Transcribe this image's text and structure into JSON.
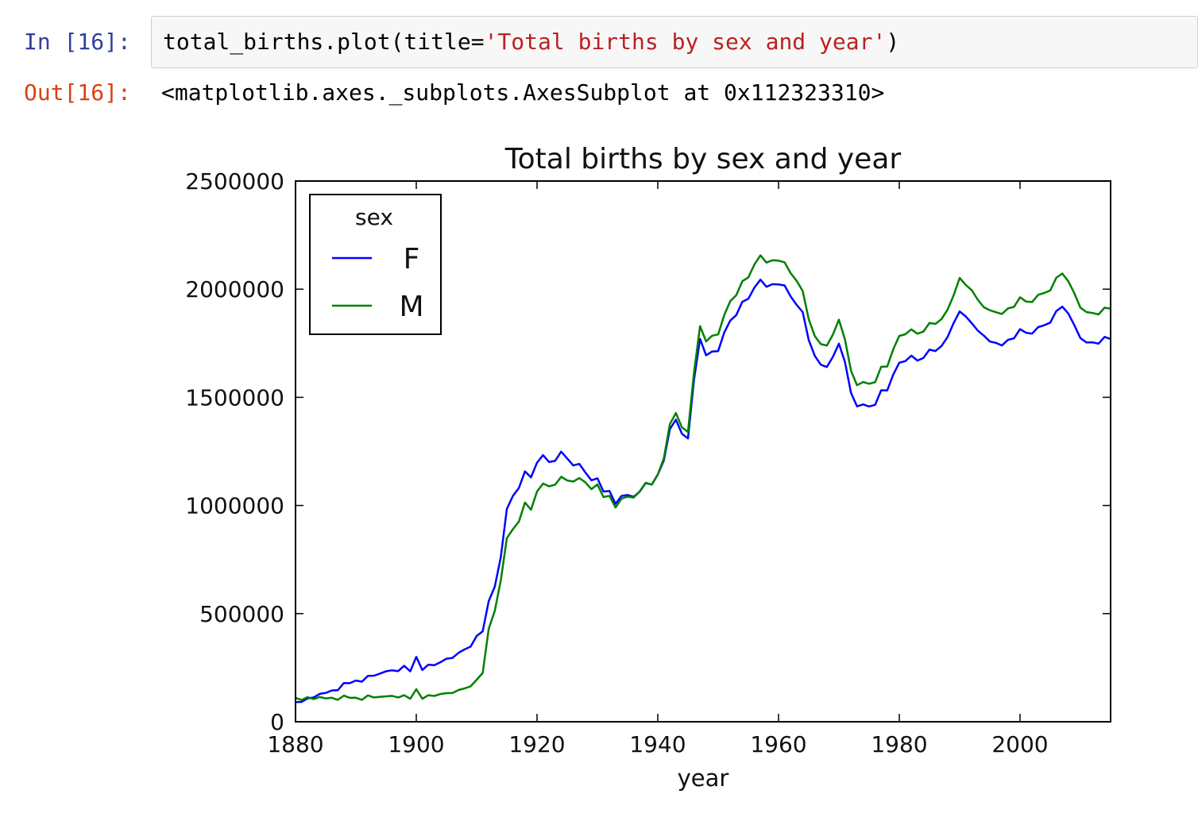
{
  "cell": {
    "in_prompt": "In [16]:",
    "code_parts": [
      "total_births.plot(title=",
      "'Total births by sex and year'",
      ")"
    ],
    "out_prompt": "Out[16]:",
    "output_text": "<matplotlib.axes._subplots.AxesSubplot at 0x112323310>"
  },
  "chart_data": {
    "type": "line",
    "title": "Total births by sex and year",
    "xlabel": "year",
    "legend_title": "sex",
    "legend": "upper left",
    "x": [
      1880,
      1881,
      1882,
      1883,
      1884,
      1885,
      1886,
      1887,
      1888,
      1889,
      1890,
      1891,
      1892,
      1893,
      1894,
      1895,
      1896,
      1897,
      1898,
      1899,
      1900,
      1901,
      1902,
      1903,
      1904,
      1905,
      1906,
      1907,
      1908,
      1909,
      1910,
      1911,
      1912,
      1913,
      1914,
      1915,
      1916,
      1917,
      1918,
      1919,
      1920,
      1921,
      1922,
      1923,
      1924,
      1925,
      1926,
      1927,
      1928,
      1929,
      1930,
      1931,
      1932,
      1933,
      1934,
      1935,
      1936,
      1937,
      1938,
      1939,
      1940,
      1941,
      1942,
      1943,
      1944,
      1945,
      1946,
      1947,
      1948,
      1949,
      1950,
      1951,
      1952,
      1953,
      1954,
      1955,
      1956,
      1957,
      1958,
      1959,
      1960,
      1961,
      1962,
      1963,
      1964,
      1965,
      1966,
      1967,
      1968,
      1969,
      1970,
      1971,
      1972,
      1973,
      1974,
      1975,
      1976,
      1977,
      1978,
      1979,
      1980,
      1981,
      1982,
      1983,
      1984,
      1985,
      1986,
      1987,
      1988,
      1989,
      1990,
      1991,
      1992,
      1993,
      1994,
      1995,
      1996,
      1997,
      1998,
      1999,
      2000,
      2001,
      2002,
      2003,
      2004,
      2005,
      2006,
      2007,
      2008,
      2009,
      2010,
      2011,
      2012,
      2013,
      2014,
      2015
    ],
    "series": [
      {
        "name": "F",
        "color": "#0000ff",
        "values": [
          90990,
          91950,
          107800,
          112300,
          129000,
          133100,
          144500,
          145900,
          178600,
          178400,
          190400,
          185500,
          212300,
          212900,
          222900,
          233600,
          237900,
          234200,
          258800,
          233000,
          299800,
          239300,
          264100,
          261900,
          275400,
          291600,
          295300,
          318600,
          334300,
          347200,
          396400,
          418200,
          557900,
          624500,
          761400,
          983800,
          1044200,
          1081200,
          1157600,
          1130100,
          1198200,
          1232800,
          1200700,
          1206200,
          1248800,
          1217200,
          1185100,
          1192200,
          1152800,
          1116300,
          1125500,
          1064200,
          1066900,
          1007600,
          1044200,
          1048400,
          1040100,
          1063800,
          1103400,
          1096700,
          1143300,
          1207800,
          1352800,
          1396800,
          1331600,
          1309800,
          1581500,
          1770300,
          1694100,
          1711800,
          1713500,
          1799100,
          1854600,
          1880200,
          1941600,
          1955600,
          2007500,
          2044200,
          2010900,
          2023100,
          2022100,
          2017300,
          1966500,
          1927200,
          1894400,
          1765000,
          1691900,
          1650800,
          1640200,
          1686900,
          1748200,
          1663500,
          1521100,
          1458100,
          1467400,
          1457700,
          1465100,
          1532800,
          1531600,
          1605300,
          1660100,
          1667500,
          1692700,
          1669900,
          1682100,
          1720400,
          1714100,
          1737700,
          1779100,
          1843200,
          1897300,
          1874100,
          1843000,
          1808400,
          1785300,
          1758000,
          1752000,
          1739800,
          1765900,
          1772600,
          1814900,
          1798400,
          1794400,
          1824400,
          1833000,
          1845400,
          1898500,
          1919400,
          1887200,
          1832900,
          1773400,
          1753500,
          1753900,
          1748000,
          1779500,
          1769300
        ]
      },
      {
        "name": "M",
        "color": "#008000",
        "values": [
          110500,
          100700,
          113700,
          104600,
          114400,
          107800,
          110800,
          101400,
          120800,
          110600,
          111000,
          101200,
          122000,
          112300,
          115300,
          117500,
          119600,
          112300,
          122500,
          106200,
          150500,
          106400,
          122700,
          119200,
          128100,
          132300,
          133200,
          146800,
          154300,
          163900,
          194200,
          225900,
          429900,
          512500,
          654700,
          848600,
          890100,
          925600,
          1013700,
          980200,
          1064500,
          1101400,
          1088400,
          1096200,
          1132700,
          1115800,
          1110600,
          1126800,
          1107100,
          1075100,
          1097100,
          1039000,
          1044300,
          990400,
          1031500,
          1040900,
          1036800,
          1064700,
          1105000,
          1096300,
          1143000,
          1217300,
          1376000,
          1427300,
          1361400,
          1339900,
          1615000,
          1829400,
          1758400,
          1784900,
          1790700,
          1880100,
          1944300,
          1972100,
          2036800,
          2054800,
          2114000,
          2156300,
          2123000,
          2134000,
          2132200,
          2123900,
          2074000,
          2038700,
          1991500,
          1861400,
          1783300,
          1746100,
          1739500,
          1789700,
          1859000,
          1767200,
          1623400,
          1556100,
          1570400,
          1562600,
          1569900,
          1641500,
          1642500,
          1722000,
          1784100,
          1791300,
          1814200,
          1794100,
          1803900,
          1844000,
          1839400,
          1861800,
          1905700,
          1971200,
          2052300,
          2019900,
          1995200,
          1951200,
          1916600,
          1902600,
          1893700,
          1885600,
          1911000,
          1918300,
          1962400,
          1942900,
          1940600,
          1974000,
          1982200,
          1994300,
          2052400,
          2072400,
          2036400,
          1980500,
          1914600,
          1894300,
          1889900,
          1883400,
          1914600,
          1909800
        ]
      }
    ],
    "xlim": [
      1880,
      2015
    ],
    "xticks": [
      1880,
      1900,
      1920,
      1940,
      1960,
      1980,
      2000
    ],
    "ylim": [
      0,
      2500000
    ],
    "yticks": [
      0,
      500000,
      1000000,
      1500000,
      2000000,
      2500000
    ],
    "grid": false
  }
}
